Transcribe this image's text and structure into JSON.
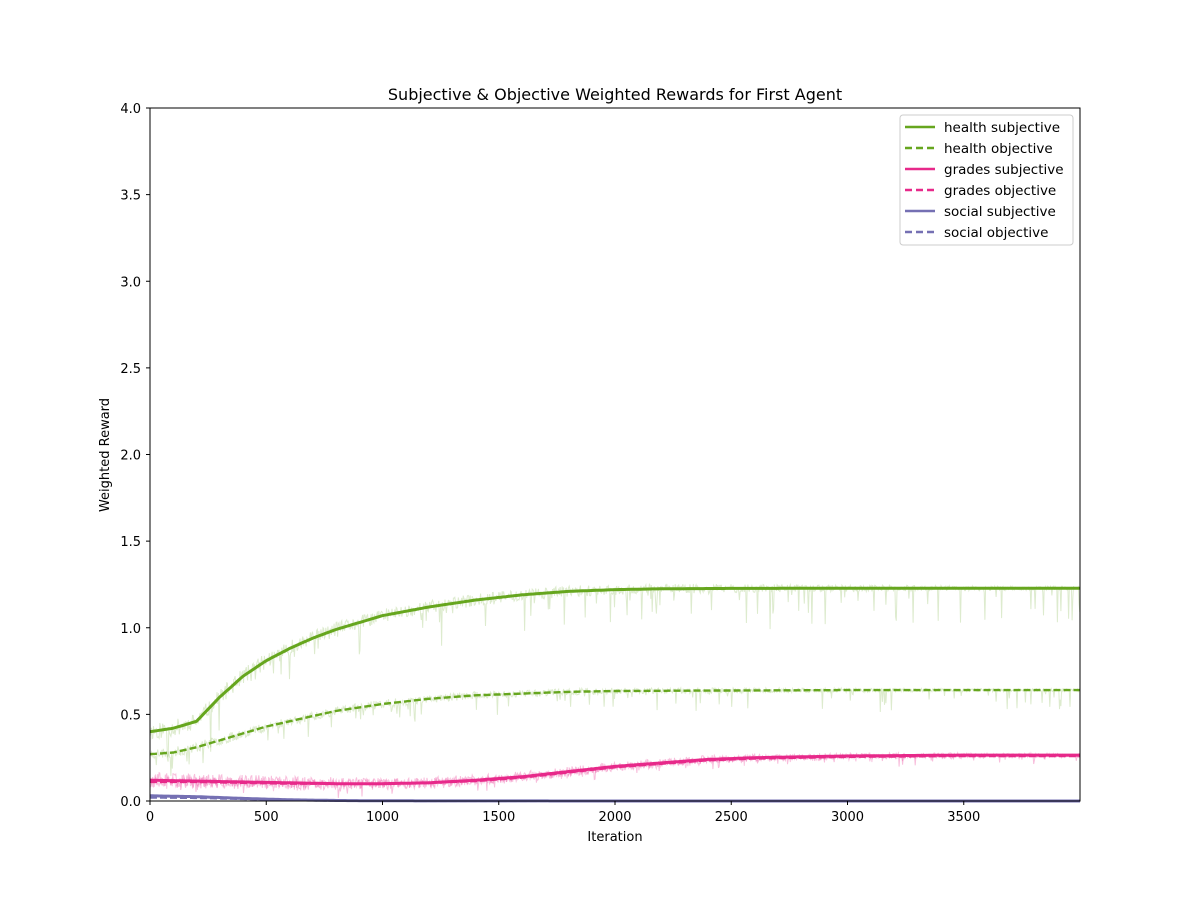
{
  "chart_data": {
    "type": "line",
    "title": "Subjective & Objective Weighted Rewards for First Agent",
    "xlabel": "Iteration",
    "ylabel": "Weighted Reward",
    "xlim": [
      0,
      4000
    ],
    "ylim": [
      0,
      4.0
    ],
    "xticks": [
      0,
      500,
      1000,
      1500,
      2000,
      2500,
      3000,
      3500
    ],
    "yticks": [
      0.0,
      0.5,
      1.0,
      1.5,
      2.0,
      2.5,
      3.0,
      3.5,
      4.0
    ],
    "xtick_labels": [
      "0",
      "500",
      "1000",
      "1500",
      "2000",
      "2500",
      "3000",
      "3500"
    ],
    "ytick_labels": [
      "0.0",
      "0.5",
      "1.0",
      "1.5",
      "2.0",
      "2.5",
      "3.0",
      "3.5",
      "4.0"
    ],
    "grid": false,
    "legend_position": "top-right",
    "series": [
      {
        "name": "health subjective",
        "color": "#66a61e",
        "style": "solid",
        "x": [
          0,
          100,
          200,
          300,
          400,
          500,
          600,
          700,
          800,
          900,
          1000,
          1200,
          1400,
          1600,
          1800,
          2000,
          2200,
          2500,
          3000,
          3500,
          4000
        ],
        "y": [
          0.4,
          0.42,
          0.46,
          0.6,
          0.72,
          0.81,
          0.88,
          0.94,
          0.99,
          1.03,
          1.07,
          1.12,
          1.16,
          1.19,
          1.21,
          1.22,
          1.225,
          1.227,
          1.228,
          1.228,
          1.228
        ]
      },
      {
        "name": "health objective",
        "color": "#66a61e",
        "style": "dashed",
        "x": [
          0,
          100,
          200,
          300,
          400,
          500,
          600,
          700,
          800,
          900,
          1000,
          1200,
          1400,
          1600,
          1800,
          2000,
          2500,
          3000,
          3500,
          4000
        ],
        "y": [
          0.27,
          0.28,
          0.31,
          0.35,
          0.39,
          0.43,
          0.46,
          0.49,
          0.52,
          0.54,
          0.56,
          0.59,
          0.61,
          0.62,
          0.63,
          0.635,
          0.638,
          0.64,
          0.64,
          0.64
        ]
      },
      {
        "name": "grades subjective",
        "color": "#e7298a",
        "style": "solid",
        "x": [
          0,
          200,
          400,
          600,
          800,
          1000,
          1200,
          1400,
          1600,
          1800,
          2000,
          2200,
          2400,
          2600,
          2800,
          3000,
          3500,
          4000
        ],
        "y": [
          0.12,
          0.115,
          0.11,
          0.105,
          0.1,
          0.1,
          0.105,
          0.12,
          0.14,
          0.17,
          0.2,
          0.22,
          0.24,
          0.25,
          0.255,
          0.26,
          0.265,
          0.265
        ]
      },
      {
        "name": "grades objective",
        "color": "#e7298a",
        "style": "dashed",
        "x": [
          0,
          200,
          400,
          600,
          800,
          1000,
          1200,
          1400,
          1600,
          1800,
          2000,
          2200,
          2400,
          2600,
          2800,
          3000,
          3500,
          4000
        ],
        "y": [
          0.11,
          0.11,
          0.105,
          0.1,
          0.1,
          0.1,
          0.105,
          0.115,
          0.135,
          0.165,
          0.195,
          0.215,
          0.235,
          0.245,
          0.25,
          0.255,
          0.26,
          0.26
        ]
      },
      {
        "name": "social subjective",
        "color": "#7570b3",
        "style": "solid",
        "x": [
          0,
          200,
          400,
          600,
          800,
          1000,
          2000,
          3000,
          4000
        ],
        "y": [
          0.03,
          0.025,
          0.015,
          0.007,
          0.003,
          0.001,
          0.0,
          0.0,
          0.0
        ]
      },
      {
        "name": "social objective",
        "color": "#7570b3",
        "style": "dashed",
        "x": [
          0,
          200,
          400,
          600,
          800,
          1000,
          2000,
          3000,
          4000
        ],
        "y": [
          0.02,
          0.018,
          0.012,
          0.006,
          0.002,
          0.001,
          0.0,
          0.0,
          0.0
        ]
      }
    ]
  }
}
